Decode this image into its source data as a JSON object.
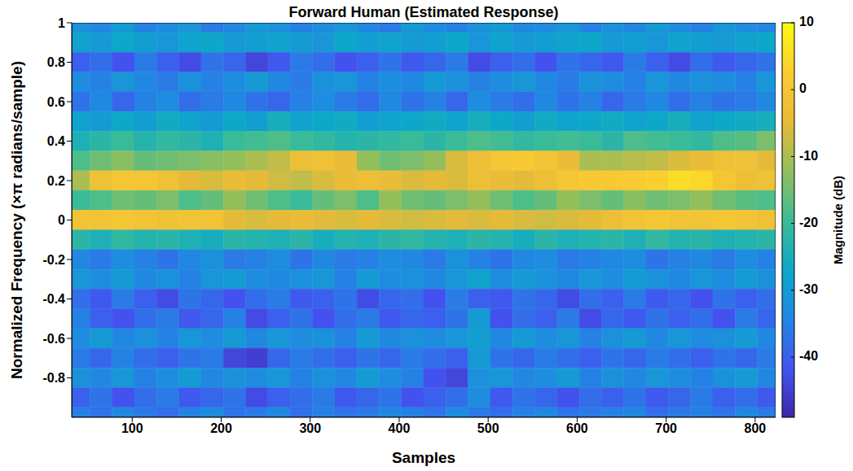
{
  "chart_data": {
    "type": "heatmap",
    "title": "Forward Human (Estimated Response)",
    "x_label": "Samples",
    "y_label": "Normalized Frequency (×π radians/sample)",
    "xlim": [
      32,
      823
    ],
    "xticks": [
      100,
      200,
      300,
      400,
      500,
      600,
      700,
      800
    ],
    "ylim": [
      -1,
      1
    ],
    "yticks": [
      -0.8,
      -0.6,
      -0.4,
      -0.2,
      0,
      0.2,
      0.4,
      0.6,
      0.8,
      1
    ],
    "grid": false,
    "cells": {
      "x": [
        40,
        65,
        90,
        115,
        140,
        165,
        190,
        215,
        240,
        265,
        290,
        315,
        340,
        365,
        390,
        415,
        440,
        465,
        490,
        515,
        540,
        565,
        590,
        615,
        640,
        665,
        690,
        715,
        740,
        765,
        790,
        815
      ],
      "y": [
        1,
        0.9,
        0.8,
        0.7,
        0.6,
        0.5,
        0.4,
        0.3,
        0.2,
        0.1,
        0,
        -0.1,
        -0.2,
        -0.3,
        -0.4,
        -0.5,
        -0.6,
        -0.7,
        -0.8,
        -0.9,
        -1
      ],
      "z": [
        [
          -32,
          -34,
          -30,
          -35,
          -33,
          -31,
          -36,
          -34,
          -30,
          -32,
          -35,
          -33,
          -31,
          -34,
          -36,
          -30,
          -33,
          -35,
          -32,
          -30,
          -34,
          -33,
          -31,
          -35,
          -32,
          -34,
          -30,
          -33,
          -35,
          -31,
          -33,
          -34
        ],
        [
          -28,
          -30,
          -27,
          -29,
          -31,
          -28,
          -27,
          -30,
          -29,
          -28,
          -30,
          -31,
          -27,
          -29,
          -28,
          -30,
          -29,
          -27,
          -31,
          -28,
          -30,
          -29,
          -28,
          -27,
          -30,
          -29,
          -31,
          -28,
          -29,
          -30,
          -28,
          -27
        ],
        [
          -40,
          -38,
          -42,
          -36,
          -40,
          -43,
          -37,
          -39,
          -44,
          -41,
          -36,
          -38,
          -42,
          -40,
          -37,
          -41,
          -39,
          -36,
          -43,
          -40,
          -38,
          -42,
          -37,
          -39,
          -41,
          -36,
          -40,
          -43,
          -38,
          -41,
          -39,
          -37
        ],
        [
          -33,
          -35,
          -31,
          -34,
          -36,
          -32,
          -35,
          -33,
          -30,
          -34,
          -36,
          -32,
          -31,
          -35,
          -33,
          -34,
          -30,
          -32,
          -35,
          -33,
          -31,
          -34,
          -36,
          -32,
          -33,
          -35,
          -31,
          -34,
          -32,
          -33,
          -35,
          -31
        ],
        [
          -37,
          -34,
          -39,
          -35,
          -33,
          -38,
          -36,
          -34,
          -37,
          -39,
          -35,
          -33,
          -36,
          -38,
          -34,
          -37,
          -35,
          -39,
          -33,
          -36,
          -38,
          -34,
          -37,
          -35,
          -39,
          -36,
          -34,
          -38,
          -35,
          -37,
          -36,
          -34
        ],
        [
          -28,
          -30,
          -27,
          -29,
          -26,
          -28,
          -30,
          -27,
          -29,
          -25,
          -28,
          -27,
          -26,
          -29,
          -28,
          -27,
          -26,
          -28,
          -25,
          -27,
          -29,
          -26,
          -28,
          -27,
          -26,
          -28,
          -27,
          -25,
          -28,
          -27,
          -26,
          -25
        ],
        [
          -24,
          -22,
          -20,
          -23,
          -21,
          -22,
          -24,
          -20,
          -19,
          -18,
          -20,
          -21,
          -23,
          -22,
          -21,
          -20,
          -22,
          -20,
          -18,
          -19,
          -21,
          -20,
          -19,
          -20,
          -22,
          -18,
          -19,
          -20,
          -21,
          -18,
          -17,
          -14
        ],
        [
          -18,
          -15,
          -13,
          -16,
          -15,
          -14,
          -13,
          -12,
          -10,
          -8,
          -3,
          -2,
          -4,
          -12,
          -15,
          -14,
          -12,
          -6,
          -3,
          0,
          1,
          -1,
          -4,
          -10,
          -10,
          -9,
          -8,
          -6,
          -4,
          -2,
          -2,
          -5
        ],
        [
          -10,
          -2,
          0,
          0,
          -2,
          -5,
          -6,
          -4,
          -5,
          -7,
          -8,
          -6,
          -4,
          -3,
          -4,
          -6,
          -5,
          -6,
          -3,
          -4,
          -5,
          -3,
          0,
          1,
          1,
          2,
          3,
          5,
          4,
          0,
          -3,
          -2
        ],
        [
          -20,
          -18,
          -15,
          -16,
          -14,
          -18,
          -16,
          -12,
          -15,
          -18,
          -20,
          -16,
          -14,
          -18,
          -12,
          -15,
          -16,
          -14,
          -12,
          -15,
          -18,
          -16,
          -12,
          -14,
          -16,
          -13,
          -15,
          -14,
          -12,
          -15,
          -17,
          -18
        ],
        [
          -1,
          -1,
          0,
          -1,
          -2,
          -1,
          -1,
          -5,
          -6,
          -5,
          -4,
          -5,
          -6,
          -5,
          -6,
          -7,
          -6,
          -5,
          -6,
          -5,
          -6,
          -7,
          -6,
          -5,
          -3,
          -1,
          0,
          -1,
          -1,
          0,
          -1,
          -2
        ],
        [
          -22,
          -24,
          -21,
          -23,
          -22,
          -24,
          -25,
          -22,
          -23,
          -24,
          -22,
          -25,
          -23,
          -24,
          -22,
          -21,
          -23,
          -24,
          -22,
          -23,
          -25,
          -22,
          -24,
          -23,
          -22,
          -24,
          -21,
          -23,
          -22,
          -24,
          -23,
          -22
        ],
        [
          -34,
          -36,
          -33,
          -35,
          -37,
          -34,
          -32,
          -36,
          -35,
          -33,
          -37,
          -34,
          -36,
          -35,
          -33,
          -34,
          -36,
          -32,
          -35,
          -37,
          -34,
          -33,
          -36,
          -35,
          -34,
          -33,
          -37,
          -35,
          -34,
          -36,
          -33,
          -35
        ],
        [
          -31,
          -33,
          -30,
          -34,
          -32,
          -35,
          -31,
          -30,
          -33,
          -34,
          -32,
          -31,
          -35,
          -30,
          -33,
          -32,
          -34,
          -31,
          -28,
          -33,
          -30,
          -32,
          -34,
          -31,
          -33,
          -30,
          -32,
          -34,
          -31,
          -33,
          -30,
          -32
        ],
        [
          -38,
          -41,
          -36,
          -40,
          -43,
          -37,
          -39,
          -42,
          -38,
          -36,
          -41,
          -40,
          -37,
          -43,
          -39,
          -38,
          -42,
          -36,
          -40,
          -41,
          -37,
          -39,
          -43,
          -38,
          -40,
          -36,
          -41,
          -39,
          -42,
          -37,
          -40,
          -38
        ],
        [
          -35,
          -40,
          -42,
          -38,
          -36,
          -41,
          -39,
          -35,
          -43,
          -40,
          -37,
          -42,
          -38,
          -36,
          -41,
          -39,
          -40,
          -37,
          -30,
          -42,
          -38,
          -40,
          -36,
          -43,
          -39,
          -41,
          -37,
          -40,
          -38,
          -42,
          -36,
          -39
        ],
        [
          -33,
          -30,
          -34,
          -32,
          -35,
          -31,
          -33,
          -30,
          -34,
          -31,
          -33,
          -32,
          -35,
          -30,
          -34,
          -32,
          -33,
          -31,
          -29,
          -34,
          -30,
          -33,
          -31,
          -35,
          -32,
          -30,
          -34,
          -31,
          -33,
          -32,
          -30,
          -34
        ],
        [
          -36,
          -39,
          -35,
          -38,
          -40,
          -37,
          -36,
          -44,
          -45,
          -39,
          -36,
          -38,
          -40,
          -37,
          -39,
          -36,
          -38,
          -40,
          -30,
          -37,
          -39,
          -36,
          -38,
          -40,
          -37,
          -39,
          -36,
          -38,
          -40,
          -37,
          -39,
          -36
        ],
        [
          -32,
          -34,
          -31,
          -35,
          -33,
          -30,
          -34,
          -32,
          -33,
          -31,
          -35,
          -32,
          -34,
          -30,
          -33,
          -35,
          -42,
          -44,
          -32,
          -31,
          -34,
          -33,
          -30,
          -35,
          -32,
          -34,
          -31,
          -33,
          -35,
          -32,
          -30,
          -34
        ],
        [
          -40,
          -37,
          -42,
          -38,
          -36,
          -41,
          -39,
          -37,
          -43,
          -40,
          -38,
          -36,
          -41,
          -39,
          -37,
          -42,
          -40,
          -38,
          -33,
          -41,
          -37,
          -39,
          -42,
          -38,
          -40,
          -37,
          -41,
          -39,
          -36,
          -40,
          -38,
          -41
        ],
        [
          -35,
          -37,
          -34,
          -36,
          -38,
          -35,
          -33,
          -37,
          -36,
          -34,
          -38,
          -35,
          -37,
          -36,
          -34,
          -35,
          -37,
          -33,
          -36,
          -38,
          -35,
          -34,
          -37,
          -36,
          -35,
          -34,
          -38,
          -36,
          -35,
          -37,
          -34,
          -36
        ]
      ]
    },
    "colorbar": {
      "label": "Magnitude (dB)",
      "range": [
        -49,
        10
      ],
      "ticks": [
        -40,
        -30,
        -20,
        -10,
        0,
        10
      ]
    }
  }
}
